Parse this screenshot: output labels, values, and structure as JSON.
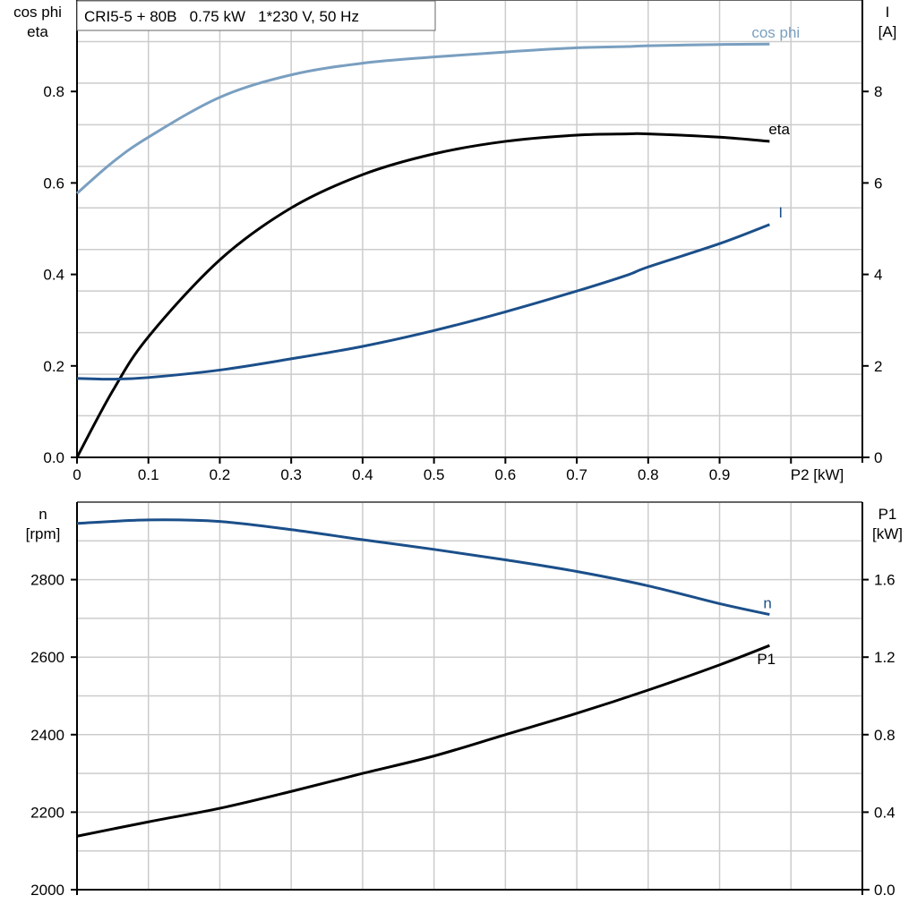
{
  "title": "CRI5-5 + 80B   0.75 kW   1*230 V, 50 Hz",
  "colors": {
    "cosphi": "#7a9fc0",
    "current": "#1b4f8a",
    "eta": "#000000",
    "speed": "#1b4f8a",
    "p1": "#000000",
    "grid": "#cccccc"
  },
  "chart_data": [
    {
      "type": "line",
      "xlabel": "P2 [kW]",
      "ylabel_left": [
        "cos phi",
        "eta"
      ],
      "ylabel_right": [
        "I",
        "[A]"
      ],
      "xlim": [
        0,
        1.1
      ],
      "ylim_left": [
        0,
        1.1
      ],
      "ylim_right": [
        0,
        11
      ],
      "grid": true,
      "x_ticks": [
        "0",
        "0.1",
        "0.2",
        "0.3",
        "0.4",
        "0.5",
        "0.6",
        "0.7",
        "0.8",
        "0.9"
      ],
      "y_left_ticks": [
        "0.0",
        "0.2",
        "0.4",
        "0.6",
        "0.8"
      ],
      "y_right_ticks": [
        "0",
        "2",
        "4",
        "6",
        "8"
      ],
      "x": [
        0,
        0.05,
        0.1,
        0.2,
        0.3,
        0.4,
        0.5,
        0.6,
        0.7,
        0.77,
        0.8,
        0.9,
        0.97
      ],
      "series": [
        {
          "name": "cos phi",
          "axis": "left",
          "values": [
            0.635,
            0.71,
            0.77,
            0.866,
            0.92,
            0.948,
            0.963,
            0.975,
            0.985,
            0.988,
            0.99,
            0.993,
            0.994
          ]
        },
        {
          "name": "eta",
          "axis": "left",
          "values": [
            0.0,
            0.16,
            0.29,
            0.475,
            0.6,
            0.68,
            0.73,
            0.76,
            0.775,
            0.778,
            0.778,
            0.77,
            0.76
          ]
        },
        {
          "name": "I",
          "axis": "right",
          "values": [
            1.9,
            1.88,
            1.92,
            2.1,
            2.37,
            2.67,
            3.05,
            3.5,
            4.0,
            4.38,
            4.58,
            5.14,
            5.6
          ]
        }
      ]
    },
    {
      "type": "line",
      "ylabel_left": [
        "n",
        "[rpm]"
      ],
      "ylabel_right": [
        "P1",
        "[kW]"
      ],
      "xlim": [
        0,
        1.1
      ],
      "ylim_left": [
        2000,
        3000
      ],
      "ylim_right": [
        0,
        2.0
      ],
      "grid": true,
      "y_left_ticks": [
        "2000",
        "2200",
        "2400",
        "2600",
        "2800"
      ],
      "y_right_ticks": [
        "0.0",
        "0.4",
        "0.8",
        "1.2",
        "1.6"
      ],
      "x": [
        0,
        0.1,
        0.2,
        0.3,
        0.4,
        0.5,
        0.6,
        0.7,
        0.8,
        0.9,
        0.97
      ],
      "series": [
        {
          "name": "n",
          "axis": "left",
          "values": [
            2945,
            2954,
            2950,
            2929,
            2903,
            2878,
            2851,
            2821,
            2784,
            2738,
            2710
          ]
        },
        {
          "name": "P1",
          "axis": "right",
          "values": [
            0.276,
            0.35,
            0.42,
            0.507,
            0.6,
            0.69,
            0.8,
            0.91,
            1.03,
            1.16,
            1.26
          ]
        }
      ]
    }
  ]
}
